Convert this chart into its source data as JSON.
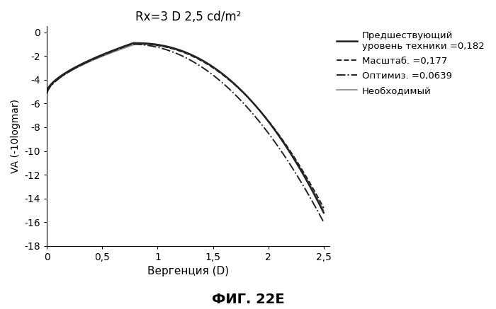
{
  "title": "Rx=3 D 2,5 cd/m²",
  "xlabel": "Вергенция (D)",
  "ylabel": "VA (-10logmar)",
  "figcaption": "ФИГ. 22E",
  "xlim": [
    0,
    2.55
  ],
  "ylim": [
    -18,
    0.5
  ],
  "xticks": [
    0,
    0.5,
    1,
    1.5,
    2,
    2.5
  ],
  "xticklabels": [
    "0",
    "0,5",
    "1",
    "1,5",
    "2",
    "2,5"
  ],
  "yticks": [
    0,
    -2,
    -4,
    -6,
    -8,
    -10,
    -12,
    -14,
    -16,
    -18
  ],
  "legend": [
    {
      "label": "Предшествующий\nуровень техники =0,182",
      "linestyle": "-",
      "color": "#222222",
      "linewidth": 1.8
    },
    {
      "label": "Масштаб. =0,177",
      "linestyle": "--",
      "color": "#222222",
      "linewidth": 1.4
    },
    {
      "label": "Оптимиз. =0,0639",
      "linestyle": "-.",
      "color": "#222222",
      "linewidth": 1.4
    },
    {
      "label": "Необходимый",
      "linestyle": "-",
      "color": "#888888",
      "linewidth": 1.2
    }
  ],
  "background_color": "#ffffff"
}
